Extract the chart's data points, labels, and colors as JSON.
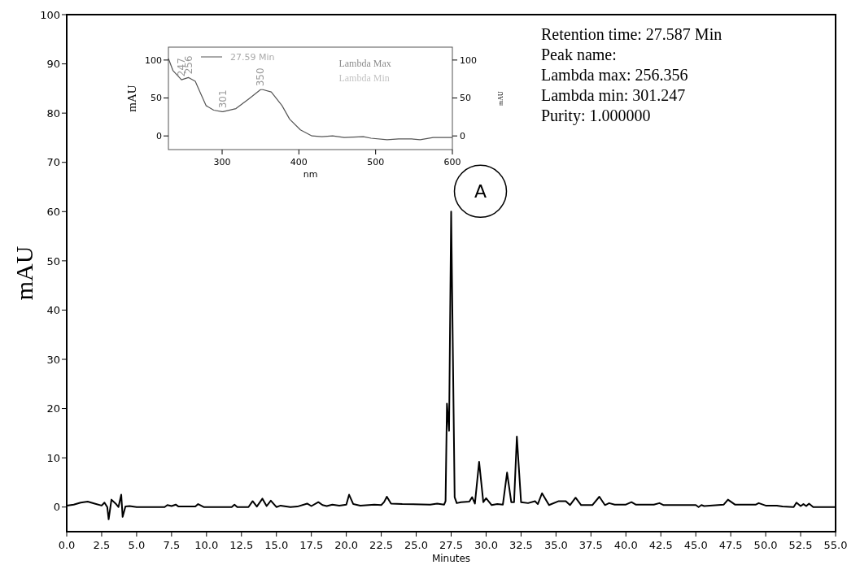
{
  "chart_data": [
    {
      "type": "line",
      "xlabel": "Minutes",
      "ylabel": "mAU",
      "xlim": [
        0,
        55
      ],
      "ylim": [
        -5,
        100
      ],
      "xticks": [
        {
          "value": 0,
          "label": "0.0"
        },
        {
          "value": 2.5,
          "label": "2.5"
        },
        {
          "value": 5,
          "label": "5.0"
        },
        {
          "value": 7.5,
          "label": "7.5"
        },
        {
          "value": 10,
          "label": "10.0"
        },
        {
          "value": 12.5,
          "label": "12.5"
        },
        {
          "value": 15,
          "label": "15.0"
        },
        {
          "value": 17.5,
          "label": "17.5"
        },
        {
          "value": 20,
          "label": "20.0"
        },
        {
          "value": 22.5,
          "label": "22.5"
        },
        {
          "value": 25,
          "label": "25.0"
        },
        {
          "value": 27.5,
          "label": "27.5"
        },
        {
          "value": 30,
          "label": "30.0"
        },
        {
          "value": 32.5,
          "label": "32.5"
        },
        {
          "value": 35,
          "label": "35.0"
        },
        {
          "value": 37.5,
          "label": "37.5"
        },
        {
          "value": 40,
          "label": "40.0"
        },
        {
          "value": 42.5,
          "label": "42.5"
        },
        {
          "value": 45,
          "label": "45.0"
        },
        {
          "value": 47.5,
          "label": "47.5"
        },
        {
          "value": 50,
          "label": "50.0"
        },
        {
          "value": 52.5,
          "label": "52.5"
        },
        {
          "value": 55,
          "label": "55.0"
        }
      ],
      "yticks": [
        0,
        10,
        20,
        30,
        40,
        50,
        60,
        70,
        80,
        90,
        100
      ],
      "series": [
        {
          "color": "#000000",
          "x": [
            0,
            0.5,
            1,
            1.5,
            2,
            2.5,
            2.7,
            2.9,
            3,
            3.2,
            3.5,
            3.7,
            3.9,
            4,
            4.2,
            4.5,
            5,
            7,
            7.2,
            7.5,
            7.8,
            8,
            9.2,
            9.4,
            9.8,
            11.8,
            12,
            12.2,
            13,
            13.3,
            13.6,
            14,
            14.3,
            14.6,
            15,
            15.3,
            16,
            16.5,
            17.2,
            17.5,
            18,
            18.3,
            18.6,
            19,
            19.5,
            20,
            20.2,
            20.5,
            21,
            22,
            22.5,
            22.7,
            22.9,
            23.2,
            24,
            26,
            26.5,
            27,
            27.1,
            27.2,
            27.35,
            27.5,
            27.75,
            27.9,
            28.2,
            28.8,
            29,
            29.2,
            29.5,
            29.8,
            30,
            30.4,
            30.8,
            31.2,
            31.5,
            31.8,
            32,
            32.2,
            32.5,
            33,
            33.5,
            33.7,
            34,
            34.5,
            35.2,
            35.7,
            36,
            36.4,
            36.8,
            37.6,
            38.1,
            38.5,
            38.8,
            39.2,
            40,
            40.4,
            40.7,
            42,
            42.4,
            42.7,
            45,
            45.2,
            45.4,
            45.6,
            47,
            47.3,
            47.8,
            49.3,
            49.5,
            50,
            50.8,
            51.2,
            52,
            52.2,
            52.5,
            52.7,
            52.9,
            53.1,
            53.4,
            55
          ],
          "values": [
            0.3,
            0.5,
            0.9,
            1.1,
            0.7,
            0.3,
            0.9,
            0,
            -2.5,
            1.5,
            0.7,
            0,
            2.5,
            -2,
            0.1,
            0.2,
            0,
            0,
            0.4,
            0.2,
            0.5,
            0.1,
            0.1,
            0.6,
            0,
            0,
            0.5,
            0,
            0,
            1.2,
            0.1,
            1.7,
            0.2,
            1.3,
            0,
            0.3,
            0,
            0.1,
            0.7,
            0.2,
            1,
            0.4,
            0.2,
            0.5,
            0.3,
            0.5,
            2.5,
            0.6,
            0.3,
            0.5,
            0.4,
            1,
            2.1,
            0.7,
            0.6,
            0.5,
            0.7,
            0.5,
            1.2,
            21,
            15.5,
            60,
            2,
            0.8,
            1,
            1.1,
            2,
            0.7,
            9.2,
            1,
            1.8,
            0.4,
            0.6,
            0.5,
            7,
            1,
            1,
            14.3,
            1,
            0.8,
            1.2,
            0.6,
            2.8,
            0.4,
            1.2,
            1.2,
            0.4,
            1.9,
            0.4,
            0.4,
            2.1,
            0.4,
            0.8,
            0.5,
            0.5,
            1,
            0.5,
            0.5,
            0.8,
            0.4,
            0.4,
            0,
            0.4,
            0.2,
            0.5,
            1.5,
            0.5,
            0.5,
            0.8,
            0.3,
            0.3,
            0.1,
            0,
            0.9,
            0.2,
            0.6,
            0.2,
            0.7,
            0,
            0
          ]
        }
      ],
      "annotations": [
        "Retention time: 27.587 Min",
        "Peak name:",
        "Lambda max: 256.356",
        "Lambda min: 301.247",
        "Purity: 1.000000",
        {
          "text": "A",
          "x": 27.5,
          "y": 60
        }
      ]
    },
    {
      "type": "line",
      "xlabel": "nm",
      "ylabel": "mAU",
      "y2label": "mAU",
      "xlim": [
        230,
        600
      ],
      "ylim": [
        -18,
        117
      ],
      "y2lim": [
        -18,
        117
      ],
      "xticks": [
        300,
        400,
        500,
        600
      ],
      "yticks": [
        0,
        50,
        100
      ],
      "y2ticks": [
        0,
        50,
        100
      ],
      "legend": "top",
      "series": [
        {
          "name": "27.59 Min",
          "color": "#555555",
          "x": [
            230,
            236,
            247,
            256,
            265,
            272,
            279,
            289,
            300,
            301,
            318,
            335,
            350,
            353,
            364,
            378,
            388,
            402,
            417,
            430,
            444,
            459,
            484,
            494,
            515,
            530,
            547,
            558,
            575,
            586,
            600
          ],
          "values": [
            102,
            86,
            74,
            77,
            72,
            56,
            40,
            34,
            32,
            32,
            36,
            49,
            61,
            61,
            58,
            40,
            22,
            8,
            0,
            -1,
            0,
            -2,
            -1,
            -3,
            -5,
            -4,
            -4,
            -5,
            -2,
            -2,
            -2
          ]
        }
      ],
      "annotations": [
        "Lambda Max",
        "Lambda Min",
        {
          "text": "247",
          "x": 247,
          "y": 74
        },
        {
          "text": "256",
          "x": 256,
          "y": 77
        },
        {
          "text": "301",
          "x": 301,
          "y": 32
        },
        {
          "text": "350",
          "x": 350,
          "y": 61
        }
      ]
    }
  ]
}
